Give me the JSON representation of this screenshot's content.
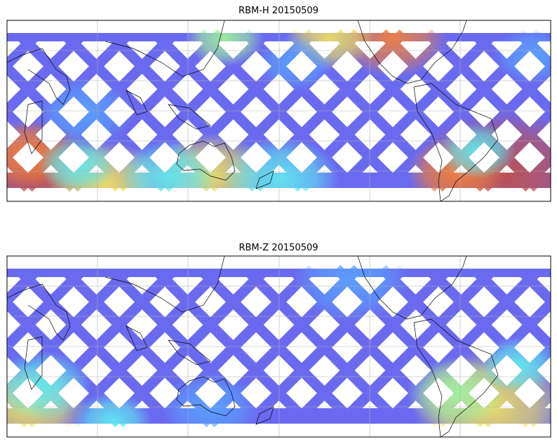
{
  "panels": [
    {
      "title": "RBM-H 20150509"
    },
    {
      "title": "RBM-Z 20150509"
    }
  ]
}
